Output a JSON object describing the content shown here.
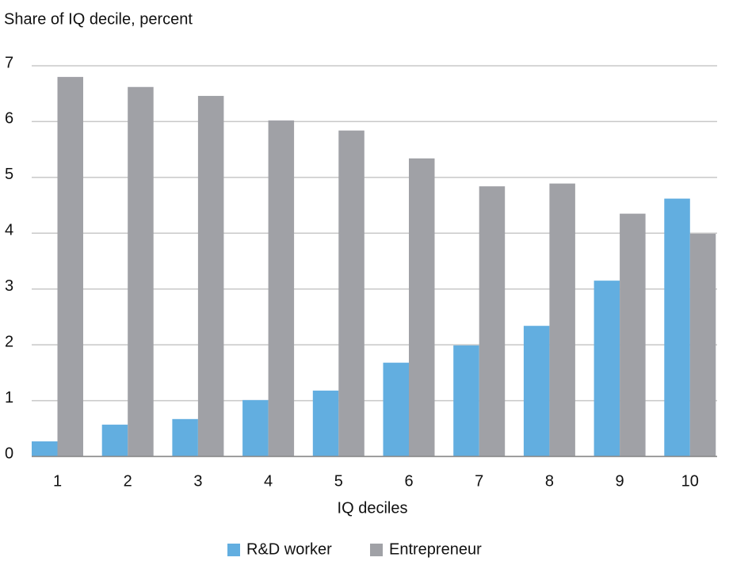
{
  "chart_data": {
    "type": "bar",
    "title": "Share of IQ decile, percent",
    "x_label": "IQ deciles",
    "categories": [
      "1",
      "2",
      "3",
      "4",
      "5",
      "6",
      "7",
      "8",
      "9",
      "10"
    ],
    "series": [
      {
        "name": "R&D worker",
        "color": "#62aee0",
        "values": [
          0.27,
          0.57,
          0.67,
          1.01,
          1.18,
          1.68,
          1.99,
          2.34,
          3.15,
          4.62
        ]
      },
      {
        "name": "Entrepreneur",
        "color": "#a0a1a6",
        "values": [
          6.8,
          6.62,
          6.46,
          6.02,
          5.84,
          5.34,
          4.84,
          4.89,
          4.35,
          3.99
        ]
      }
    ],
    "ylim": [
      0,
      7
    ],
    "yticks": [
      0,
      1,
      2,
      3,
      4,
      5,
      6,
      7
    ],
    "grid": true,
    "legend": "bottom"
  }
}
